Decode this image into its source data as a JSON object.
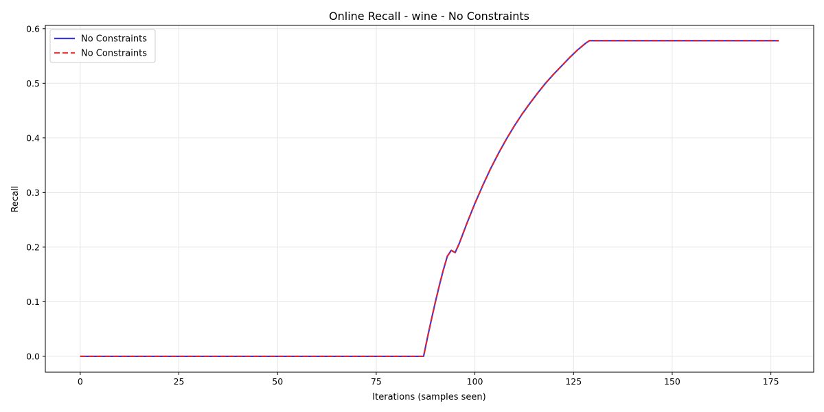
{
  "chart_data": {
    "type": "line",
    "title": "Online Recall - wine - No Constraints",
    "xlabel": "Iterations (samples seen)",
    "ylabel": "Recall",
    "xlim": [
      -8.85,
      185.85
    ],
    "ylim": [
      -0.029,
      0.606
    ],
    "x_ticks": [
      0,
      25,
      50,
      75,
      100,
      125,
      150,
      175
    ],
    "y_ticks": [
      0.0,
      0.1,
      0.2,
      0.3,
      0.4,
      0.5,
      0.6
    ],
    "y_tick_labels": [
      "0.0",
      "0.1",
      "0.2",
      "0.3",
      "0.4",
      "0.5",
      "0.6"
    ],
    "grid": true,
    "legend_position": "top-left",
    "series": [
      {
        "name": "No Constraints",
        "color": "#2222dd",
        "style": "solid",
        "x": [
          0,
          87,
          88,
          89,
          90,
          91,
          92,
          93,
          94,
          95,
          96,
          98,
          100,
          102,
          104,
          106,
          108,
          110,
          112,
          114,
          116,
          118,
          120,
          122,
          124,
          126,
          128,
          129,
          177
        ],
        "y": [
          0.0,
          0.0,
          0.035,
          0.068,
          0.1,
          0.13,
          0.158,
          0.183,
          0.194,
          0.19,
          0.206,
          0.244,
          0.28,
          0.313,
          0.344,
          0.372,
          0.398,
          0.422,
          0.444,
          0.464,
          0.483,
          0.501,
          0.517,
          0.532,
          0.547,
          0.561,
          0.573,
          0.578,
          0.578
        ]
      },
      {
        "name": "No Constraints",
        "color": "#ee2222",
        "style": "dashed",
        "x": [
          0,
          87,
          88,
          89,
          90,
          91,
          92,
          93,
          94,
          95,
          96,
          98,
          100,
          102,
          104,
          106,
          108,
          110,
          112,
          114,
          116,
          118,
          120,
          122,
          124,
          126,
          128,
          129,
          177
        ],
        "y": [
          0.0,
          0.0,
          0.035,
          0.068,
          0.1,
          0.13,
          0.158,
          0.183,
          0.194,
          0.19,
          0.206,
          0.244,
          0.28,
          0.313,
          0.344,
          0.372,
          0.398,
          0.422,
          0.444,
          0.464,
          0.483,
          0.501,
          0.517,
          0.532,
          0.547,
          0.561,
          0.573,
          0.578,
          0.578
        ]
      }
    ]
  }
}
